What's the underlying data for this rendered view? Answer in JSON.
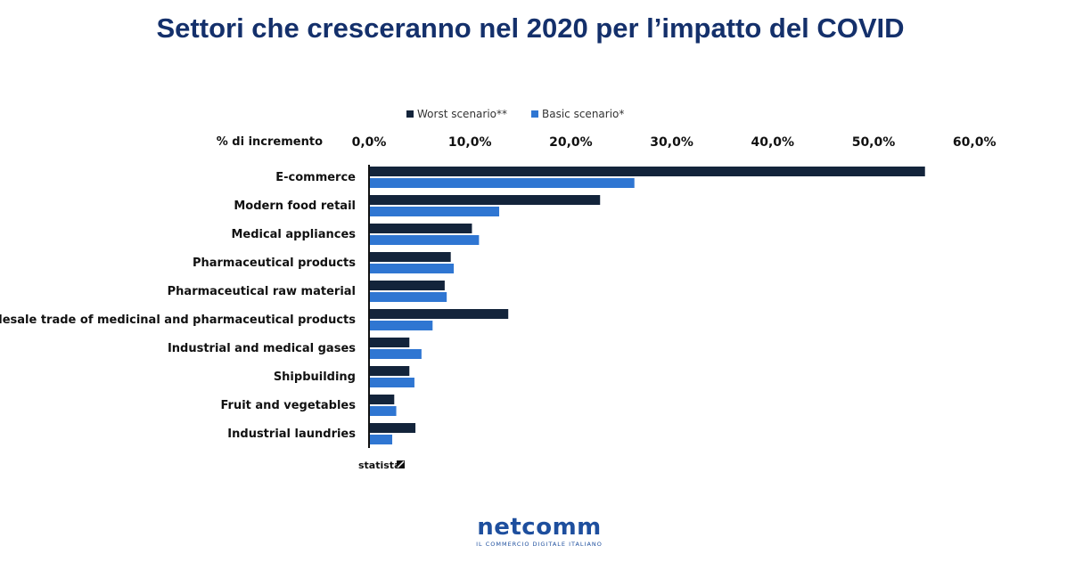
{
  "title": "Settori che cresceranno nel 2020 per l’impatto del COVID",
  "source": "statista",
  "logo": {
    "word": "netcomm",
    "tagline": "IL COMMERCIO DIGITALE ITALIANO"
  },
  "colors": {
    "worst": "#13243b",
    "basic": "#2f76d2",
    "title": "#14306b"
  },
  "chart_data": {
    "type": "bar",
    "orientation": "horizontal",
    "axis_position": "top",
    "xlabel": "% di incremento",
    "xlim": [
      0,
      60
    ],
    "ticks": [
      "0,0%",
      "10,0%",
      "20,0%",
      "30,0%",
      "40,0%",
      "50,0%",
      "60,0%"
    ],
    "legend_position": "top",
    "grid": false,
    "categories": [
      "E-commerce",
      "Modern food retail",
      "Medical appliances",
      "Pharmaceutical products",
      "Pharmaceutical raw material",
      "Wholesale trade of medicinal and pharmaceutical products",
      "Industrial and medical gases",
      "Shipbuilding",
      "Fruit and vegetables",
      "Industrial laundries"
    ],
    "series": [
      {
        "name": "Worst scenario**",
        "color": "#13243b",
        "values": [
          55.1,
          22.9,
          10.2,
          8.1,
          7.5,
          13.8,
          4.0,
          4.0,
          2.5,
          4.6
        ]
      },
      {
        "name": "Basic scenario*",
        "color": "#2f76d2",
        "values": [
          26.3,
          12.9,
          10.9,
          8.4,
          7.7,
          6.3,
          5.2,
          4.5,
          2.7,
          2.3
        ]
      }
    ]
  }
}
